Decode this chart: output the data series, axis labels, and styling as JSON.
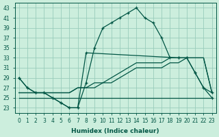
{
  "xlabel": "Humidex (Indice chaleur)",
  "bg_color": "#cceedd",
  "grid_color": "#99ccbb",
  "line_color": "#005544",
  "xlim": [
    -0.5,
    23.5
  ],
  "ylim": [
    22,
    44
  ],
  "yticks": [
    23,
    25,
    27,
    29,
    31,
    33,
    35,
    37,
    39,
    41,
    43
  ],
  "xticks": [
    0,
    1,
    2,
    3,
    4,
    5,
    6,
    7,
    8,
    9,
    10,
    11,
    12,
    13,
    14,
    15,
    16,
    17,
    18,
    19,
    20,
    21,
    22,
    23
  ],
  "line1_x": [
    0,
    1,
    2,
    3,
    4,
    5,
    6,
    7,
    8,
    9,
    10,
    11,
    12,
    13,
    14,
    15,
    16,
    17,
    18,
    19,
    20,
    21,
    22,
    23
  ],
  "line1_y": [
    29,
    27,
    26,
    26,
    25,
    24,
    23,
    23,
    28,
    35,
    39,
    40,
    41,
    42,
    43,
    41,
    40,
    37,
    33,
    33,
    33,
    30,
    27,
    26
  ],
  "line2_x": [
    0,
    1,
    2,
    3,
    4,
    5,
    6,
    7,
    8,
    9,
    10,
    11,
    12,
    13,
    14,
    15,
    16,
    17,
    18,
    19,
    20,
    21,
    22,
    23
  ],
  "line2_y": [
    25,
    25,
    25,
    25,
    25,
    25,
    25,
    25,
    25,
    25,
    25,
    25,
    25,
    25,
    25,
    25,
    25,
    25,
    25,
    25,
    25,
    25,
    25,
    25
  ],
  "line3_x": [
    0,
    1,
    2,
    3,
    4,
    5,
    6,
    7,
    8,
    9,
    10,
    11,
    12,
    13,
    14,
    15,
    16,
    17,
    18,
    19,
    20,
    21,
    22,
    23
  ],
  "line3_y": [
    26,
    26,
    26,
    26,
    26,
    26,
    26,
    27,
    27,
    27,
    28,
    28,
    29,
    30,
    31,
    31,
    31,
    31,
    32,
    32,
    33,
    33,
    33,
    26
  ],
  "line4_x": [
    0,
    1,
    2,
    3,
    4,
    5,
    6,
    7,
    8,
    9,
    10,
    11,
    12,
    13,
    14,
    15,
    16,
    17,
    18,
    19,
    20,
    21,
    22,
    23
  ],
  "line4_y": [
    26,
    26,
    26,
    26,
    26,
    26,
    26,
    27,
    27,
    28,
    28,
    29,
    30,
    31,
    32,
    32,
    32,
    32,
    33,
    33,
    33,
    33,
    33,
    26
  ],
  "line5_x": [
    0,
    1,
    2,
    3,
    4,
    5,
    6,
    7,
    8,
    19,
    20,
    21,
    22,
    23
  ],
  "line5_y": [
    29,
    27,
    26,
    26,
    25,
    24,
    23,
    23,
    34,
    33,
    33,
    30,
    27,
    25
  ]
}
